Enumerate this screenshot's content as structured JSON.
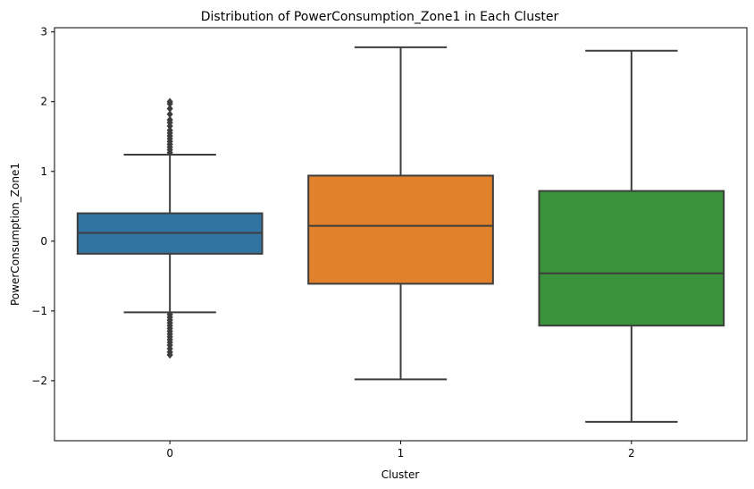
{
  "chart_data": {
    "type": "box",
    "title": "Distribution of PowerConsumption_Zone1 in Each Cluster",
    "xlabel": "Cluster",
    "ylabel": "PowerConsumption_Zone1",
    "ylim": [
      -2.86,
      3.06
    ],
    "yticks": [
      {
        "value": -2,
        "label": "−2"
      },
      {
        "value": -1,
        "label": "−1"
      },
      {
        "value": 0,
        "label": "0"
      },
      {
        "value": 1,
        "label": "1"
      },
      {
        "value": 2,
        "label": "2"
      },
      {
        "value": 3,
        "label": "3"
      }
    ],
    "categories": [
      "0",
      "1",
      "2"
    ],
    "boxes": [
      {
        "name": "0",
        "color": "#3274a1",
        "whisker_low": -1.02,
        "q1": -0.18,
        "median": 0.12,
        "q3": 0.4,
        "whisker_high": 1.24,
        "outliers": [
          1.27,
          1.31,
          1.35,
          1.39,
          1.43,
          1.47,
          1.51,
          1.55,
          1.59,
          1.65,
          1.7,
          1.74,
          1.82,
          1.9,
          1.97,
          2.0,
          -1.05,
          -1.09,
          -1.13,
          -1.17,
          -1.21,
          -1.25,
          -1.29,
          -1.33,
          -1.37,
          -1.41,
          -1.45,
          -1.49,
          -1.54,
          -1.59,
          -1.63
        ]
      },
      {
        "name": "1",
        "color": "#e1812c",
        "whisker_low": -1.98,
        "q1": -0.61,
        "median": 0.22,
        "q3": 0.94,
        "whisker_high": 2.78,
        "outliers": []
      },
      {
        "name": "2",
        "color": "#3a923a",
        "whisker_low": -2.59,
        "q1": -1.21,
        "median": -0.46,
        "q3": 0.72,
        "whisker_high": 2.73,
        "outliers": []
      }
    ],
    "grid": false,
    "legend": "none"
  }
}
